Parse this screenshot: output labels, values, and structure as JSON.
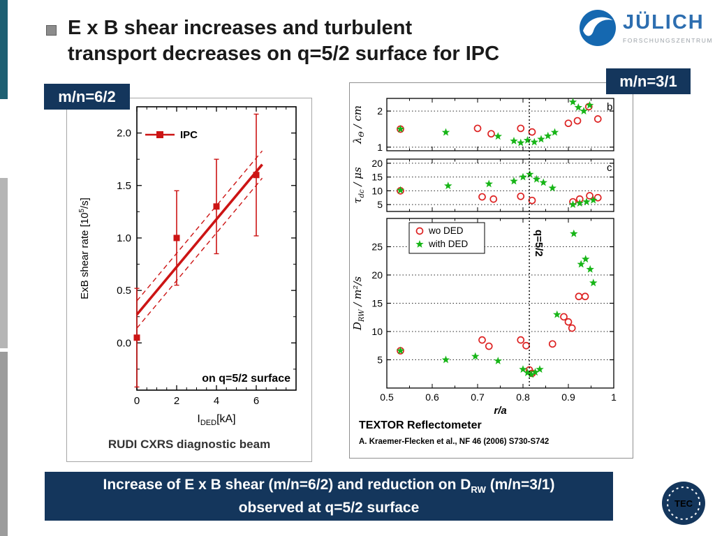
{
  "page": {
    "title_line1": "E x B shear increases and turbulent",
    "title_line2": "transport decreases on q=5/2 surface for IPC",
    "badge_left": "m/n=6/2",
    "badge_right": "m/n=3/1",
    "banner_line1_pre": "Increase of E x B shear (m/n=6/2) and reduction on D",
    "banner_line1_sub": "RW",
    "banner_line1_post": " (m/n=3/1)",
    "banner_line2": "observed at q=5/2 surface",
    "logo_title": "JÜLICH",
    "logo_subtitle": "FORSCHUNGSZENTRUM",
    "tec_label": "TEC"
  },
  "chart_data": [
    {
      "type": "scatter",
      "caption": "RUDI CXRS diagnostic beam",
      "annotation": "on q=5/2 surface",
      "legend": [
        {
          "label": "IPC",
          "marker": "square",
          "color": "#cc1414"
        }
      ],
      "color": "#cc1414",
      "xlabel": {
        "pre": "I",
        "sub": "DED",
        "post": "[kA]"
      },
      "ylabel": {
        "pre": "ExB shear rate [10",
        "sup": "5",
        "post": "/s]"
      },
      "xlim": [
        0,
        8
      ],
      "ylim": [
        -0.45,
        2.25
      ],
      "xticks": [
        0,
        2,
        4,
        6
      ],
      "xtick_labels": [
        "0",
        "2",
        "4",
        "6"
      ],
      "yticks": [
        0,
        0.5,
        1,
        1.5,
        2
      ],
      "ytick_labels": [
        "0.0",
        "0.5",
        "1.0",
        "1.5",
        "2.0"
      ],
      "points": [
        {
          "x": 0,
          "y": 0.05,
          "err": 0.47
        },
        {
          "x": 2,
          "y": 1.0,
          "err": 0.45
        },
        {
          "x": 4,
          "y": 1.3,
          "err": 0.45
        },
        {
          "x": 6,
          "y": 1.6,
          "err": 0.58
        }
      ],
      "fit_line": {
        "x1": 0,
        "y1": 0.27,
        "x2": 6.3,
        "y2": 1.7
      },
      "fit_band_offset": 0.13
    },
    {
      "type": "scatter",
      "caption": "TEXTOR Reflectometer",
      "reference": "A. Kraemer-Flecken et al., NF 46 (2006) S730-S742",
      "xlabel": "r/a",
      "xlim": [
        0.5,
        1.0
      ],
      "xticks": [
        0.5,
        0.6,
        0.7,
        0.8,
        0.9,
        1
      ],
      "xtick_labels": [
        "0.5",
        "0.6",
        "0.7",
        "0.8",
        "0.9",
        "1"
      ],
      "vline": {
        "x": 0.814,
        "label": "q=5/2"
      },
      "legend": [
        {
          "label": "wo DED",
          "marker": "circle",
          "color": "#dd2222"
        },
        {
          "label": "with DED",
          "marker": "star",
          "color": "#17b517"
        }
      ],
      "panels": [
        {
          "tag": "b",
          "ylabel": {
            "main": "λ",
            "sub": "Θ",
            "post": " / cm"
          },
          "ylim": [
            0.9,
            2.35
          ],
          "yticks": [
            1,
            2
          ],
          "series": [
            {
              "name": "wo DED",
              "marker": "circle",
              "color": "#dd2222",
              "points": [
                [
                  0.53,
                  1.5
                ],
                [
                  0.7,
                  1.52
                ],
                [
                  0.73,
                  1.37
                ],
                [
                  0.795,
                  1.52
                ],
                [
                  0.82,
                  1.42
                ],
                [
                  0.9,
                  1.66
                ],
                [
                  0.92,
                  1.73
                ],
                [
                  0.945,
                  2.12
                ],
                [
                  0.965,
                  1.78
                ]
              ]
            },
            {
              "name": "with DED",
              "marker": "star",
              "color": "#17b517",
              "points": [
                [
                  0.53,
                  1.5
                ],
                [
                  0.63,
                  1.41
                ],
                [
                  0.745,
                  1.3
                ],
                [
                  0.78,
                  1.17
                ],
                [
                  0.795,
                  1.12
                ],
                [
                  0.81,
                  1.19
                ],
                [
                  0.825,
                  1.14
                ],
                [
                  0.84,
                  1.22
                ],
                [
                  0.855,
                  1.31
                ],
                [
                  0.87,
                  1.41
                ],
                [
                  0.91,
                  2.25
                ],
                [
                  0.922,
                  2.1
                ],
                [
                  0.934,
                  2.0
                ],
                [
                  0.947,
                  2.16
                ]
              ]
            }
          ]
        },
        {
          "tag": "c",
          "ylabel": {
            "main": "τ",
            "sub": "dc",
            "post": " / μs"
          },
          "ylim": [
            2.5,
            21.5
          ],
          "yticks": [
            5,
            10,
            15,
            20
          ],
          "series": [
            {
              "name": "wo DED",
              "marker": "circle",
              "color": "#dd2222",
              "points": [
                [
                  0.53,
                  10.0
                ],
                [
                  0.71,
                  7.8
                ],
                [
                  0.735,
                  7.0
                ],
                [
                  0.795,
                  8.0
                ],
                [
                  0.82,
                  6.5
                ],
                [
                  0.91,
                  6.0
                ],
                [
                  0.925,
                  7.0
                ],
                [
                  0.947,
                  8.2
                ],
                [
                  0.965,
                  7.5
                ]
              ]
            },
            {
              "name": "with DED",
              "marker": "star",
              "color": "#17b517",
              "points": [
                [
                  0.53,
                  10.2
                ],
                [
                  0.635,
                  11.8
                ],
                [
                  0.725,
                  12.5
                ],
                [
                  0.78,
                  13.5
                ],
                [
                  0.8,
                  15.0
                ],
                [
                  0.815,
                  16.0
                ],
                [
                  0.83,
                  14.2
                ],
                [
                  0.845,
                  13.0
                ],
                [
                  0.865,
                  11.0
                ],
                [
                  0.91,
                  5.0
                ],
                [
                  0.925,
                  5.5
                ],
                [
                  0.94,
                  6.0
                ],
                [
                  0.955,
                  6.6
                ]
              ]
            }
          ]
        },
        {
          "tag": "",
          "ylabel": {
            "main": "D",
            "sub": "RW",
            "post": " / m²/s"
          },
          "ylim": [
            0,
            30
          ],
          "yticks": [
            5,
            10,
            15,
            20,
            25
          ],
          "series": [
            {
              "name": "wo DED",
              "marker": "circle",
              "color": "#dd2222",
              "points": [
                [
                  0.53,
                  6.6
                ],
                [
                  0.71,
                  8.5
                ],
                [
                  0.725,
                  7.4
                ],
                [
                  0.795,
                  8.5
                ],
                [
                  0.807,
                  7.5
                ],
                [
                  0.814,
                  3.2
                ],
                [
                  0.82,
                  2.6
                ],
                [
                  0.865,
                  7.8
                ],
                [
                  0.89,
                  12.6
                ],
                [
                  0.9,
                  11.7
                ],
                [
                  0.908,
                  10.6
                ],
                [
                  0.923,
                  16.2
                ],
                [
                  0.937,
                  16.2
                ]
              ]
            },
            {
              "name": "with DED",
              "marker": "star",
              "color": "#17b517",
              "points": [
                [
                  0.53,
                  6.6
                ],
                [
                  0.63,
                  5.0
                ],
                [
                  0.695,
                  5.6
                ],
                [
                  0.745,
                  4.8
                ],
                [
                  0.8,
                  3.3
                ],
                [
                  0.81,
                  2.7
                ],
                [
                  0.818,
                  2.4
                ],
                [
                  0.827,
                  2.8
                ],
                [
                  0.837,
                  3.3
                ],
                [
                  0.875,
                  13.0
                ],
                [
                  0.912,
                  27.3
                ],
                [
                  0.928,
                  21.9
                ],
                [
                  0.938,
                  22.8
                ],
                [
                  0.948,
                  21.0
                ],
                [
                  0.955,
                  18.6
                ]
              ]
            }
          ]
        }
      ]
    }
  ]
}
